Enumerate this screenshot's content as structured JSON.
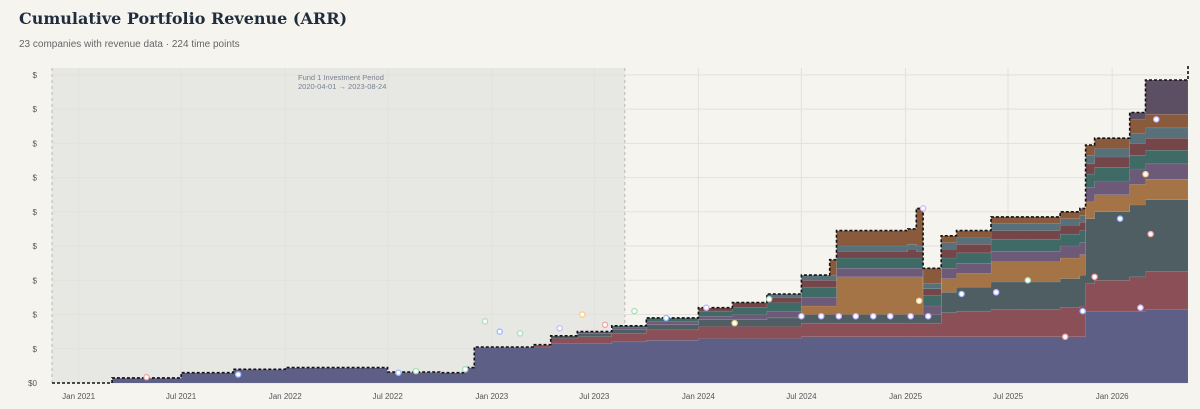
{
  "header": {
    "title": "Cumulative Portfolio Revenue (ARR)",
    "subtitle": "23 companies with revenue data · 224 time points"
  },
  "colors": {
    "background": "#f6f4ef",
    "shade": "#e7e7e4",
    "base_series": "#5e5f86",
    "outline": "#111111"
  },
  "chart_data": {
    "type": "area",
    "stacked": true,
    "title": "Cumulative Portfolio Revenue (ARR)",
    "xlabel": "",
    "ylabel": "",
    "grid": true,
    "y_tick_labels": [
      "$0",
      "$",
      "$",
      "$",
      "$",
      "$",
      "$",
      "$",
      "$",
      "$"
    ],
    "y_tick_values": [
      0,
      1,
      2,
      3,
      4,
      5,
      6,
      7,
      8,
      9
    ],
    "ylim": [
      0,
      9.2
    ],
    "x_range": [
      "2020-11-15",
      "2026-05-15"
    ],
    "x_ticks": [
      {
        "date": "2021-01-01",
        "label": "Jan 2021"
      },
      {
        "date": "2021-07-01",
        "label": "Jul 2021"
      },
      {
        "date": "2022-01-01",
        "label": "Jan 2022"
      },
      {
        "date": "2022-07-01",
        "label": "Jul 2022"
      },
      {
        "date": "2023-01-01",
        "label": "Jan 2023"
      },
      {
        "date": "2023-07-01",
        "label": "Jul 2023"
      },
      {
        "date": "2024-01-01",
        "label": "Jan 2024"
      },
      {
        "date": "2024-07-01",
        "label": "Jul 2024"
      },
      {
        "date": "2025-01-01",
        "label": "Jan 2025"
      },
      {
        "date": "2025-07-01",
        "label": "Jul 2025"
      },
      {
        "date": "2026-01-01",
        "label": "Jan 2026"
      }
    ],
    "annotation": {
      "label": "Fund 1 Investment Period",
      "range_label": "2020-04-01 → 2023-08-24",
      "start": "2020-04-01",
      "end": "2023-08-24"
    },
    "dates": [
      "2020-11-15",
      "2021-03-01",
      "2021-07-01",
      "2021-10-01",
      "2022-01-01",
      "2022-06-01",
      "2022-07-01",
      "2022-10-01",
      "2022-11-01",
      "2022-11-15",
      "2022-12-01",
      "2023-02-01",
      "2023-03-15",
      "2023-04-15",
      "2023-06-01",
      "2023-08-01",
      "2023-10-01",
      "2024-01-01",
      "2024-03-01",
      "2024-05-01",
      "2024-07-01",
      "2024-08-20",
      "2024-09-01",
      "2024-10-01",
      "2024-12-01",
      "2025-01-05",
      "2025-01-20",
      "2025-02-01",
      "2025-03-05",
      "2025-04-01",
      "2025-06-01",
      "2025-08-01",
      "2025-10-01",
      "2025-11-05",
      "2025-11-15",
      "2025-12-01",
      "2026-02-01",
      "2026-03-01",
      "2026-05-15"
    ],
    "series": [
      {
        "color": "#5e5f86",
        "values": [
          0,
          0.15,
          0.3,
          0.4,
          0.45,
          0.45,
          0.32,
          0.3,
          0.3,
          0.45,
          1.05,
          1.05,
          1.05,
          1.15,
          1.15,
          1.2,
          1.25,
          1.3,
          1.3,
          1.3,
          1.35,
          1.35,
          1.35,
          1.35,
          1.35,
          1.35,
          1.35,
          1.35,
          1.35,
          1.35,
          1.35,
          1.35,
          1.35,
          1.35,
          2.1,
          2.1,
          2.1,
          2.15,
          2.15
        ]
      },
      {
        "color": "#8a4f57",
        "values": [
          0,
          0,
          0,
          0,
          0,
          0,
          0,
          0,
          0,
          0,
          0,
          0,
          0.05,
          0.15,
          0.2,
          0.25,
          0.3,
          0.35,
          0.35,
          0.35,
          0.4,
          0.4,
          0.4,
          0.4,
          0.4,
          0.4,
          0.4,
          0.4,
          0.7,
          0.75,
          0.8,
          0.8,
          0.85,
          0.9,
          0.8,
          0.9,
          1.0,
          1.1,
          1.15
        ]
      },
      {
        "color": "#4e5e62",
        "values": [
          0,
          0,
          0,
          0,
          0,
          0,
          0,
          0,
          0,
          0,
          0,
          0,
          0.02,
          0.08,
          0.1,
          0.12,
          0.15,
          0.2,
          0.2,
          0.25,
          0.25,
          0.25,
          0.25,
          0.25,
          0.25,
          0.25,
          0.25,
          0.25,
          0.6,
          0.7,
          0.8,
          0.8,
          0.85,
          0.9,
          1.9,
          2.0,
          2.1,
          2.1,
          2.1
        ]
      },
      {
        "color": "#a57446",
        "values": [
          0,
          0,
          0,
          0,
          0,
          0,
          0,
          0,
          0,
          0,
          0,
          0,
          0,
          0,
          0,
          0,
          0,
          0,
          0,
          0,
          0.25,
          0.25,
          1.1,
          1.1,
          1.1,
          1.1,
          1.1,
          0,
          0.4,
          0.4,
          0.6,
          0.6,
          0.6,
          0.6,
          0.5,
          0.5,
          0.6,
          0.6,
          0.65
        ]
      },
      {
        "color": "#6c5a78",
        "values": [
          0,
          0,
          0,
          0,
          0,
          0,
          0,
          0,
          0,
          0,
          0,
          0,
          0,
          0,
          0.05,
          0.05,
          0.1,
          0.1,
          0.15,
          0.2,
          0.25,
          0.25,
          0.25,
          0.25,
          0.25,
          0.25,
          0.25,
          0.25,
          0.3,
          0.3,
          0.3,
          0.3,
          0.35,
          0.35,
          0.4,
          0.4,
          0.45,
          0.45,
          0.5
        ]
      },
      {
        "color": "#3f6a66",
        "values": [
          0,
          0,
          0,
          0,
          0,
          0,
          0,
          0,
          0,
          0,
          0,
          0,
          0,
          0,
          0,
          0.05,
          0.1,
          0.15,
          0.2,
          0.25,
          0.3,
          0.3,
          0.3,
          0.3,
          0.3,
          0.3,
          0.3,
          0.3,
          0.3,
          0.3,
          0.35,
          0.35,
          0.35,
          0.35,
          0.4,
          0.4,
          0.4,
          0.4,
          0.45
        ]
      },
      {
        "color": "#74464a",
        "values": [
          0,
          0,
          0,
          0,
          0,
          0,
          0,
          0,
          0,
          0,
          0,
          0,
          0,
          0,
          0,
          0,
          0,
          0.1,
          0.15,
          0.15,
          0.2,
          0.2,
          0.2,
          0.2,
          0.2,
          0.25,
          0.2,
          0.2,
          0.25,
          0.25,
          0.25,
          0.25,
          0.25,
          0.25,
          0.3,
          0.3,
          0.35,
          0.35,
          0.4
        ]
      },
      {
        "color": "#57707a",
        "values": [
          0,
          0,
          0,
          0,
          0,
          0,
          0,
          0,
          0,
          0,
          0,
          0,
          0,
          0,
          0,
          0,
          0,
          0,
          0,
          0.1,
          0.15,
          0.15,
          0.15,
          0.15,
          0.15,
          0.15,
          0.15,
          0.15,
          0.2,
          0.2,
          0.2,
          0.2,
          0.2,
          0.2,
          0.25,
          0.25,
          0.3,
          0.3,
          0.3
        ]
      },
      {
        "color": "#8a5a3c",
        "values": [
          0,
          0,
          0,
          0,
          0,
          0,
          0,
          0,
          0,
          0,
          0,
          0,
          0,
          0,
          0,
          0,
          0,
          0,
          0,
          0,
          0,
          0.45,
          0.45,
          0.45,
          0.45,
          0.45,
          1.1,
          0.45,
          0.2,
          0.2,
          0.2,
          0.2,
          0.2,
          0.2,
          0.3,
          0.3,
          0.4,
          0.4,
          0.5
        ]
      },
      {
        "color": "#5d4f63",
        "values": [
          0,
          0,
          0,
          0,
          0,
          0,
          0,
          0,
          0,
          0,
          0,
          0,
          0,
          0,
          0,
          0,
          0,
          0,
          0,
          0,
          0,
          0,
          0,
          0,
          0,
          0,
          0,
          0,
          0,
          0,
          0,
          0,
          0,
          0,
          0,
          0,
          0.2,
          1.0,
          1.1
        ]
      }
    ],
    "markers": [
      {
        "date": "2021-05-01",
        "value": 0.17,
        "color": "#f3a6a6"
      },
      {
        "date": "2021-10-10",
        "value": 0.25,
        "color": "#9fb8ff"
      },
      {
        "date": "2022-07-20",
        "value": 0.3,
        "color": "#9fb8ff"
      },
      {
        "date": "2022-08-20",
        "value": 0.35,
        "color": "#a8e0b8"
      },
      {
        "date": "2022-11-15",
        "value": 0.4,
        "color": "#a8e0b8"
      },
      {
        "date": "2022-12-20",
        "value": 1.8,
        "color": "#a8e0b8"
      },
      {
        "date": "2023-01-15",
        "value": 1.5,
        "color": "#9fb8ff"
      },
      {
        "date": "2023-02-20",
        "value": 1.45,
        "color": "#a8e0b8"
      },
      {
        "date": "2023-05-01",
        "value": 1.6,
        "color": "#c9b8ff"
      },
      {
        "date": "2023-06-10",
        "value": 2.0,
        "color": "#f3d08a"
      },
      {
        "date": "2023-07-20",
        "value": 1.7,
        "color": "#f3a6a6"
      },
      {
        "date": "2023-09-10",
        "value": 2.1,
        "color": "#a8e0b8"
      },
      {
        "date": "2023-11-05",
        "value": 1.9,
        "color": "#9fb8ff"
      },
      {
        "date": "2024-01-15",
        "value": 2.2,
        "color": "#c9b8ff"
      },
      {
        "date": "2024-03-05",
        "value": 1.75,
        "color": "#f3d08a"
      },
      {
        "date": "2024-05-05",
        "value": 2.45,
        "color": "#a8e0b8"
      },
      {
        "date": "2024-07-01",
        "value": 1.95,
        "color": "#c9b8ff"
      },
      {
        "date": "2024-08-05",
        "value": 1.95,
        "color": "#c9b8ff"
      },
      {
        "date": "2024-09-05",
        "value": 1.95,
        "color": "#c9b8ff"
      },
      {
        "date": "2024-10-05",
        "value": 1.95,
        "color": "#c9b8ff"
      },
      {
        "date": "2024-11-05",
        "value": 1.95,
        "color": "#c9b8ff"
      },
      {
        "date": "2024-12-05",
        "value": 1.95,
        "color": "#c9b8ff"
      },
      {
        "date": "2025-01-10",
        "value": 1.95,
        "color": "#c9b8ff"
      },
      {
        "date": "2025-02-10",
        "value": 1.95,
        "color": "#c9b8ff"
      },
      {
        "date": "2025-01-25",
        "value": 2.4,
        "color": "#f3d08a"
      },
      {
        "date": "2025-02-01",
        "value": 5.1,
        "color": "#c9b8ff"
      },
      {
        "date": "2025-04-10",
        "value": 2.6,
        "color": "#9fb8ff"
      },
      {
        "date": "2025-06-10",
        "value": 2.65,
        "color": "#c9b8ff"
      },
      {
        "date": "2025-08-05",
        "value": 3.0,
        "color": "#a8e0b8"
      },
      {
        "date": "2025-10-10",
        "value": 1.35,
        "color": "#f3a6a6"
      },
      {
        "date": "2025-11-10",
        "value": 2.1,
        "color": "#9fb8ff"
      },
      {
        "date": "2025-12-01",
        "value": 3.1,
        "color": "#f3a6a6"
      },
      {
        "date": "2026-01-15",
        "value": 4.8,
        "color": "#9fb8ff"
      },
      {
        "date": "2026-02-20",
        "value": 2.2,
        "color": "#c9b8ff"
      },
      {
        "date": "2026-03-10",
        "value": 4.35,
        "color": "#f3a6a6"
      },
      {
        "date": "2026-03-20",
        "value": 7.7,
        "color": "#c9b8ff"
      },
      {
        "date": "2026-03-01",
        "value": 6.1,
        "color": "#f3d08a"
      }
    ]
  }
}
